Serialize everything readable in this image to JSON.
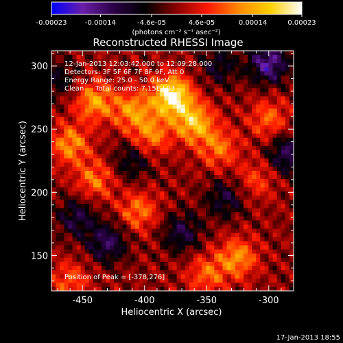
{
  "title": "Reconstructed RHESSI Image",
  "colorbar": {
    "tick_labels": [
      "-0.00023",
      "-0.00014",
      "-4.6e-05",
      "4.6e-05",
      "0.00014",
      "0.00023"
    ],
    "tick_values": [
      -0.00023,
      -0.00014,
      -4.6e-05,
      4.6e-05,
      0.00014,
      0.00023
    ],
    "range": [
      -0.00023,
      0.00023
    ],
    "units_label": "(photons cm⁻² s⁻¹ asec⁻²)",
    "colors": [
      "#0000ff",
      "#6a1fa8",
      "#2a0045",
      "#000000",
      "#8a0000",
      "#ff1a00",
      "#ff8a00",
      "#ffd000",
      "#ffffff"
    ]
  },
  "info": {
    "time_range": "12-Jan-2013 12:03:42.000 to 12:09:28.000",
    "detectors": "Detectors: 3F 5F 6F 7F 8F 9F, Att 0",
    "energy_range": "Energy Range: 25.0 - 50.0 keV",
    "algorithm": "Clean",
    "total_counts": "Total counts: 7.15E+03",
    "peak_position": "Position of Peak = [-378,276]"
  },
  "footer": {
    "date": "17-Jan-2013 18:55"
  },
  "chart_data": {
    "type": "heatmap",
    "title": "Reconstructed RHESSI Image",
    "xlabel": "Heliocentric X (arcsec)",
    "ylabel": "Heliocentric Y (arcsec)",
    "xlim": [
      -475,
      -280
    ],
    "ylim": [
      122,
      312
    ],
    "x_ticks": [
      -450,
      -400,
      -350,
      -300
    ],
    "y_ticks": [
      150,
      200,
      250,
      300
    ],
    "x_tick_labels": [
      "-450",
      "-400",
      "-350",
      "-300"
    ],
    "y_tick_labels": [
      "150",
      "200",
      "250",
      "300"
    ],
    "value_range": [
      -0.00023,
      0.00023
    ],
    "peak": {
      "x": -378,
      "y": 276
    },
    "bright_sources": [
      {
        "x": -378,
        "y": 276,
        "value": 0.00023
      },
      {
        "x": -360,
        "y": 255,
        "value": 0.00016
      },
      {
        "x": -440,
        "y": 272,
        "value": 0.00013
      },
      {
        "x": -410,
        "y": 265,
        "value": 0.00012
      },
      {
        "x": -395,
        "y": 245,
        "value": 0.00011
      },
      {
        "x": -460,
        "y": 238,
        "value": 0.00012
      },
      {
        "x": -440,
        "y": 210,
        "value": 0.0001
      },
      {
        "x": -405,
        "y": 185,
        "value": 0.0001
      },
      {
        "x": -340,
        "y": 235,
        "value": 0.0001
      },
      {
        "x": -300,
        "y": 258,
        "value": 9e-05
      },
      {
        "x": -325,
        "y": 148,
        "value": 0.00012
      },
      {
        "x": -350,
        "y": 135,
        "value": 9e-05
      },
      {
        "x": -460,
        "y": 130,
        "value": 8e-05
      },
      {
        "x": -310,
        "y": 210,
        "value": 7e-05
      }
    ],
    "negative_regions": [
      {
        "x": -430,
        "y": 160,
        "value": -0.00012
      },
      {
        "x": -370,
        "y": 168,
        "value": -0.0001
      },
      {
        "x": -335,
        "y": 195,
        "value": -9e-05
      },
      {
        "x": -410,
        "y": 225,
        "value": -8e-05
      },
      {
        "x": -300,
        "y": 302,
        "value": -0.00016
      },
      {
        "x": -285,
        "y": 230,
        "value": -0.00012
      },
      {
        "x": -455,
        "y": 180,
        "value": -0.0001
      },
      {
        "x": -340,
        "y": 300,
        "value": -8e-05
      },
      {
        "x": -470,
        "y": 290,
        "value": -7e-05
      }
    ]
  }
}
